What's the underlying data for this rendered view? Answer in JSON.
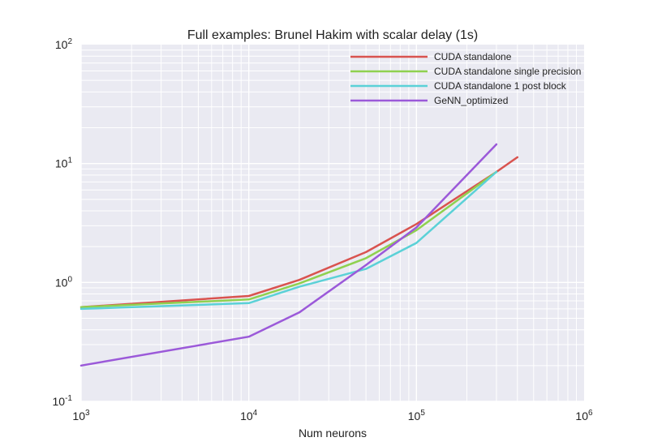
{
  "chart_data": {
    "type": "line",
    "title": "Full examples: Brunel Hakim with scalar delay (1s)",
    "xlabel": "Num neurons",
    "ylabel": "",
    "xscale": "log",
    "yscale": "log",
    "xlim": [
      1000,
      1000000
    ],
    "ylim": [
      0.1,
      100
    ],
    "grid": true,
    "legend_position": "top-right",
    "xticks": [
      {
        "base": "10",
        "exp": "3"
      },
      {
        "base": "10",
        "exp": "4"
      },
      {
        "base": "10",
        "exp": "5"
      },
      {
        "base": "10",
        "exp": "6"
      }
    ],
    "yticks": [
      {
        "base": "10",
        "exp": "-1"
      },
      {
        "base": "10",
        "exp": "0"
      },
      {
        "base": "10",
        "exp": "1"
      },
      {
        "base": "10",
        "exp": "2"
      }
    ],
    "series": [
      {
        "name": "CUDA standalone",
        "color": "#d9534f",
        "x": [
          1000,
          10000,
          20000,
          50000,
          100000,
          300000,
          400000
        ],
        "y": [
          0.62,
          0.77,
          1.05,
          1.8,
          3.1,
          8.5,
          11.3
        ]
      },
      {
        "name": "CUDA standalone single precision",
        "color": "#8fd14f",
        "x": [
          1000,
          10000,
          20000,
          50000,
          100000,
          300000
        ],
        "y": [
          0.62,
          0.72,
          0.98,
          1.6,
          2.75,
          8.5
        ]
      },
      {
        "name": "CUDA standalone 1 post block",
        "color": "#5bd1d7",
        "x": [
          1000,
          10000,
          20000,
          50000,
          100000,
          300000
        ],
        "y": [
          0.6,
          0.67,
          0.92,
          1.3,
          2.15,
          8.5
        ]
      },
      {
        "name": "GeNN_optimized",
        "color": "#9b59d9",
        "x": [
          1000,
          10000,
          20000,
          50000,
          100000,
          300000
        ],
        "y": [
          0.2,
          0.35,
          0.56,
          1.4,
          2.9,
          14.5
        ]
      }
    ]
  }
}
